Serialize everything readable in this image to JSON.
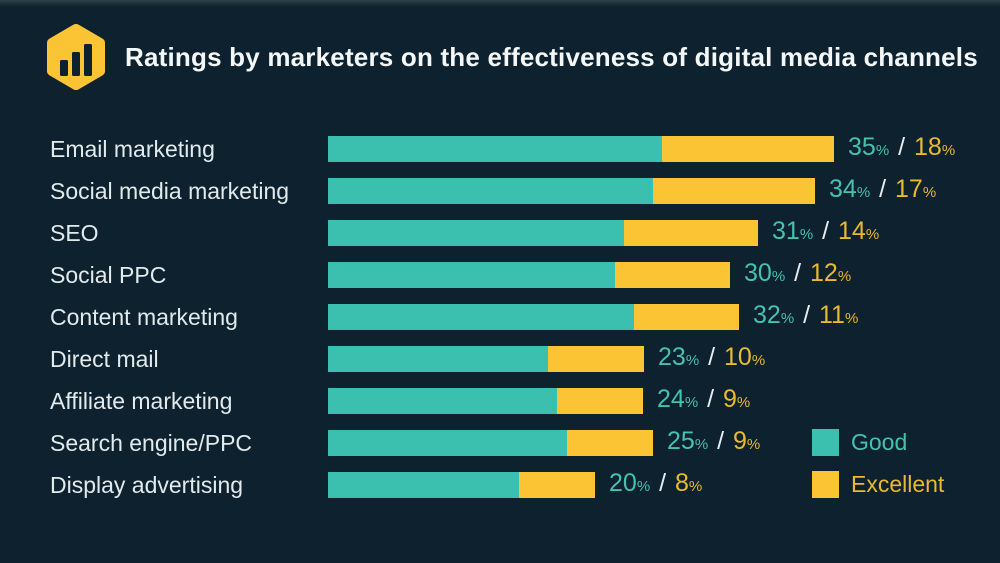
{
  "page": {
    "background": "#0d212e"
  },
  "header": {
    "logo_icon": "bar-chart-hexagon-icon",
    "title": "Ratings by marketers on the effectiveness of digital media channels"
  },
  "chart_data": {
    "type": "bar",
    "orientation": "horizontal",
    "stacked": true,
    "unit": "%",
    "value_separator": " / ",
    "categories": [
      "Email marketing",
      "Social media marketing",
      "SEO",
      "Social PPC",
      "Content marketing",
      "Direct mail",
      "Affiliate marketing",
      "Search engine/PPC",
      "Display advertising"
    ],
    "series": [
      {
        "name": "Good",
        "color": "#3bbfae",
        "values": [
          35,
          34,
          31,
          30,
          32,
          23,
          24,
          25,
          20
        ]
      },
      {
        "name": "Excellent",
        "color": "#fbc434",
        "values": [
          18,
          17,
          14,
          12,
          11,
          10,
          9,
          9,
          8
        ]
      }
    ],
    "value_labels": [
      "35% / 18%",
      "34% / 17%",
      "31% / 14%",
      "30% / 12%",
      "32% / 11%",
      "23% / 10%",
      "24% / 9%",
      "25% / 9%",
      "20% / 8%"
    ],
    "legend": {
      "position": "bottom-right",
      "entries": [
        {
          "label": "Good",
          "color": "#3bbfae"
        },
        {
          "label": "Excellent",
          "color": "#fbc434"
        }
      ]
    },
    "xlim": [
      0,
      53
    ],
    "grid": false
  },
  "colors": {
    "good": "#3bbfae",
    "excellent": "#fbc434",
    "good_text": "#45c1b0",
    "excellent_text": "#eaba2e",
    "label_text": "#e3eaec",
    "title_text": "#f4f7f8",
    "background": "#0d212e"
  }
}
